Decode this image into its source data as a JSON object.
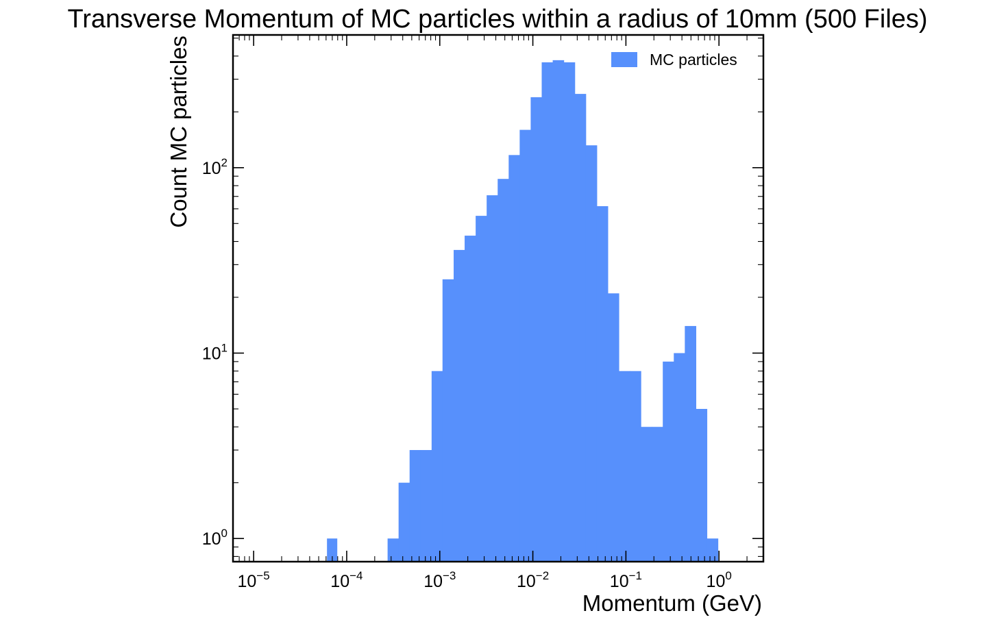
{
  "chart_data": {
    "type": "bar",
    "title": "Transverse Momentum of MC particles within a radius of 10mm (500 Files)",
    "xlabel": "Momentum (GeV)",
    "ylabel": "Count MC particles",
    "x_scale": "log",
    "y_scale": "log",
    "xlim": [
      6e-06,
      3.0
    ],
    "ylim": [
      0.75,
      520
    ],
    "x_ticks": [
      {
        "value": 1e-05,
        "base": "10",
        "exp": "−5"
      },
      {
        "value": 0.0001,
        "base": "10",
        "exp": "−4"
      },
      {
        "value": 0.001,
        "base": "10",
        "exp": "−3"
      },
      {
        "value": 0.01,
        "base": "10",
        "exp": "−2"
      },
      {
        "value": 0.1,
        "base": "10",
        "exp": "−1"
      },
      {
        "value": 1,
        "base": "10",
        "exp": "0"
      }
    ],
    "y_ticks": [
      {
        "value": 1,
        "base": "10",
        "exp": "0"
      },
      {
        "value": 10,
        "base": "10",
        "exp": "1"
      },
      {
        "value": 100,
        "base": "10",
        "exp": "2"
      }
    ],
    "grid": false,
    "legend_position": "top-right",
    "series": [
      {
        "name": "MC particles",
        "color": "#5790fc",
        "bins": [
          {
            "x0": 6.14e-05,
            "x1": 7.84e-05,
            "count": 1
          },
          {
            "x0": 0.000275,
            "x1": 0.000361,
            "count": 1
          },
          {
            "x0": 0.000361,
            "x1": 0.000474,
            "count": 2
          },
          {
            "x0": 0.000474,
            "x1": 0.000622,
            "count": 3
          },
          {
            "x0": 0.000622,
            "x1": 0.000817,
            "count": 3
          },
          {
            "x0": 0.000817,
            "x1": 0.00107,
            "count": 8
          },
          {
            "x0": 0.00107,
            "x1": 0.00141,
            "count": 25
          },
          {
            "x0": 0.00141,
            "x1": 0.00185,
            "count": 36
          },
          {
            "x0": 0.00185,
            "x1": 0.00243,
            "count": 43
          },
          {
            "x0": 0.00243,
            "x1": 0.00319,
            "count": 55
          },
          {
            "x0": 0.00319,
            "x1": 0.00419,
            "count": 71
          },
          {
            "x0": 0.00419,
            "x1": 0.0055,
            "count": 87
          },
          {
            "x0": 0.0055,
            "x1": 0.00722,
            "count": 117
          },
          {
            "x0": 0.00722,
            "x1": 0.00948,
            "count": 160
          },
          {
            "x0": 0.00948,
            "x1": 0.01245,
            "count": 240
          },
          {
            "x0": 0.01245,
            "x1": 0.01635,
            "count": 370
          },
          {
            "x0": 0.01635,
            "x1": 0.02146,
            "count": 380
          },
          {
            "x0": 0.02146,
            "x1": 0.02818,
            "count": 370
          },
          {
            "x0": 0.02818,
            "x1": 0.037,
            "count": 250
          },
          {
            "x0": 0.037,
            "x1": 0.0486,
            "count": 132
          },
          {
            "x0": 0.0486,
            "x1": 0.0638,
            "count": 62
          },
          {
            "x0": 0.0638,
            "x1": 0.0838,
            "count": 21
          },
          {
            "x0": 0.0838,
            "x1": 0.11,
            "count": 8
          },
          {
            "x0": 0.11,
            "x1": 0.1445,
            "count": 8
          },
          {
            "x0": 0.1445,
            "x1": 0.1897,
            "count": 4
          },
          {
            "x0": 0.1897,
            "x1": 0.249,
            "count": 4
          },
          {
            "x0": 0.249,
            "x1": 0.327,
            "count": 9
          },
          {
            "x0": 0.327,
            "x1": 0.4295,
            "count": 10
          },
          {
            "x0": 0.4295,
            "x1": 0.564,
            "count": 14
          },
          {
            "x0": 0.564,
            "x1": 0.7405,
            "count": 5
          },
          {
            "x0": 0.7405,
            "x1": 0.9725,
            "count": 1
          }
        ]
      }
    ]
  }
}
